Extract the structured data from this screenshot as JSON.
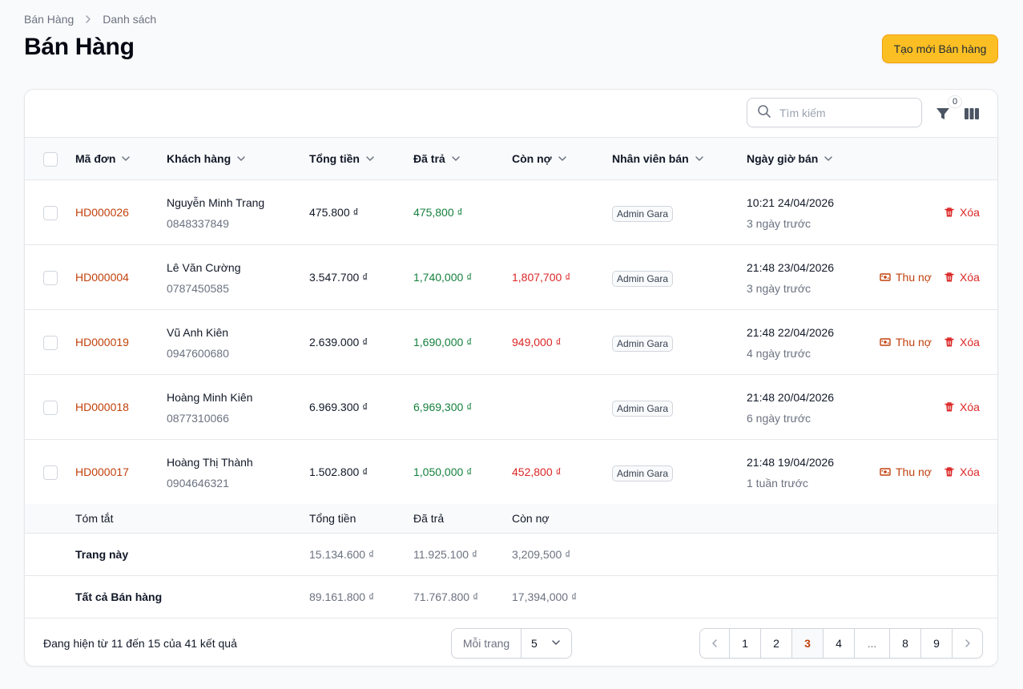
{
  "breadcrumb": {
    "root": "Bán Hàng",
    "current": "Danh sách"
  },
  "page_title": "Bán Hàng",
  "create_button": "Tạo mới Bán hàng",
  "search": {
    "placeholder": "Tìm kiếm",
    "value": ""
  },
  "filter_count": "0",
  "columns": {
    "code": "Mã đơn",
    "customer": "Khách hàng",
    "total": "Tổng tiền",
    "paid": "Đã trả",
    "debt": "Còn nợ",
    "staff": "Nhân viên bán",
    "date": "Ngày giờ bán"
  },
  "rows": [
    {
      "code": "HD000026",
      "customer": "Nguyễn Minh Trang",
      "phone": "0848337849",
      "total": "475.800 ₫",
      "paid": "475,800 ₫",
      "debt": "",
      "staff": "Admin Gara",
      "datetime": "10:21 24/04/2026",
      "relative": "3 ngày trước",
      "collect": "",
      "delete": "Xóa"
    },
    {
      "code": "HD000004",
      "customer": "Lê Văn Cường",
      "phone": "0787450585",
      "total": "3.547.700 ₫",
      "paid": "1,740,000 ₫",
      "debt": "1,807,700 ₫",
      "staff": "Admin Gara",
      "datetime": "21:48 23/04/2026",
      "relative": "3 ngày trước",
      "collect": "Thu nợ",
      "delete": "Xóa"
    },
    {
      "code": "HD000019",
      "customer": "Vũ Anh Kiên",
      "phone": "0947600680",
      "total": "2.639.000 ₫",
      "paid": "1,690,000 ₫",
      "debt": "949,000 ₫",
      "staff": "Admin Gara",
      "datetime": "21:48 22/04/2026",
      "relative": "4 ngày trước",
      "collect": "Thu nợ",
      "delete": "Xóa"
    },
    {
      "code": "HD000018",
      "customer": "Hoàng Minh Kiên",
      "phone": "0877310066",
      "total": "6.969.300 ₫",
      "paid": "6,969,300 ₫",
      "debt": "",
      "staff": "Admin Gara",
      "datetime": "21:48 20/04/2026",
      "relative": "6 ngày trước",
      "collect": "",
      "delete": "Xóa"
    },
    {
      "code": "HD000017",
      "customer": "Hoàng Thị Thành",
      "phone": "0904646321",
      "total": "1.502.800 ₫",
      "paid": "1,050,000 ₫",
      "debt": "452,800 ₫",
      "staff": "Admin Gara",
      "datetime": "21:48 19/04/2026",
      "relative": "1 tuần trước",
      "collect": "Thu nợ",
      "delete": "Xóa"
    }
  ],
  "summary": {
    "title": "Tóm tắt",
    "headers": {
      "total": "Tổng tiền",
      "paid": "Đã trả",
      "debt": "Còn nợ"
    },
    "this_page": {
      "label": "Trang này",
      "total": "15.134.600 ₫",
      "paid": "11.925.100 ₫",
      "debt": "3,209,500 ₫"
    },
    "all": {
      "label": "Tất cả Bán hàng",
      "total": "89.161.800 ₫",
      "paid": "71.767.800 ₫",
      "debt": "17,394,000 ₫"
    }
  },
  "footer": {
    "result_text": "Đang hiện từ 11 đến 15 của 41 kết quả",
    "per_page_label": "Mỗi trang",
    "per_page_value": "5",
    "pages": [
      "1",
      "2",
      "3",
      "4",
      "...",
      "8",
      "9"
    ],
    "current_page": "3"
  },
  "colors": {
    "accent": "#fbbf24",
    "order_code": "#c2410c",
    "paid": "#15803d",
    "debt": "#dc2626",
    "delete": "#dc2626"
  }
}
